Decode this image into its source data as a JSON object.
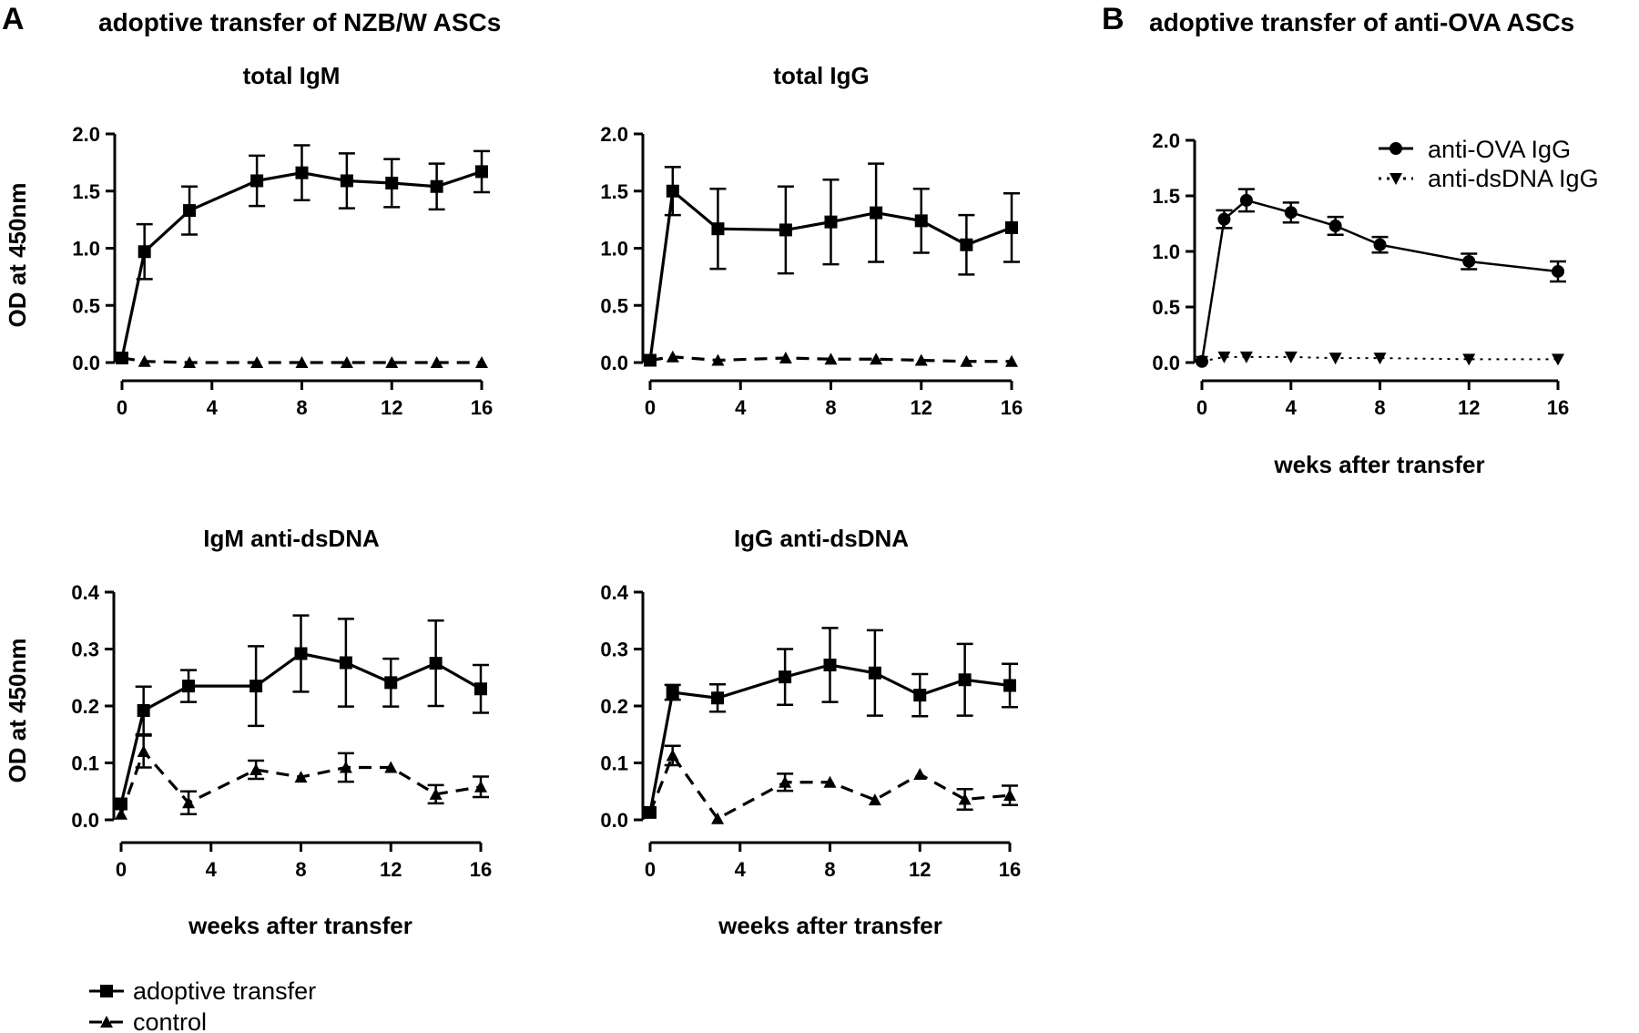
{
  "panels": {
    "A": {
      "letter": "A",
      "title": "adoptive transfer of NZB/W ASCs"
    },
    "B": {
      "letter": "B",
      "title": "adoptive transfer of anti-OVA ASCs"
    }
  },
  "legend_A": [
    {
      "label": "adoptive transfer",
      "line": "solid",
      "marker": "square"
    },
    {
      "label": "control",
      "line": "dashed",
      "marker": "triangle-up"
    }
  ],
  "legend_B": [
    {
      "label": "anti-OVA IgG",
      "line": "solid",
      "marker": "circle"
    },
    {
      "label": "anti-dsDNA IgG",
      "line": "dotted",
      "marker": "triangle-down"
    }
  ],
  "chart_data": [
    {
      "id": "totalIgM",
      "type": "line",
      "title": "total IgM",
      "xlabel": "",
      "ylabel": "OD at 450nm",
      "xlim": [
        0,
        16
      ],
      "xticks": [
        0,
        4,
        8,
        12,
        16
      ],
      "ylim": [
        0,
        2.0
      ],
      "yticks": [
        "0.0",
        "0.5",
        "1.0",
        "1.5",
        "2.0"
      ],
      "series": [
        {
          "line": "solid",
          "marker": "square",
          "x": [
            0,
            1,
            3,
            6,
            8,
            10,
            12,
            14,
            16
          ],
          "y": [
            0.04,
            0.97,
            1.33,
            1.59,
            1.66,
            1.59,
            1.57,
            1.54,
            1.67
          ],
          "err": [
            0,
            0.24,
            0.21,
            0.22,
            0.24,
            0.24,
            0.21,
            0.2,
            0.18
          ]
        },
        {
          "line": "dashed",
          "marker": "triangle-up",
          "x": [
            0,
            1,
            3,
            6,
            8,
            10,
            12,
            14,
            16
          ],
          "y": [
            0.04,
            0.01,
            0.0,
            0.0,
            0.0,
            0.0,
            0.0,
            0.0,
            0.0
          ],
          "err": [
            0,
            0,
            0,
            0,
            0,
            0,
            0,
            0,
            0
          ]
        }
      ]
    },
    {
      "id": "totalIgG",
      "type": "line",
      "title": "total IgG",
      "xlabel": "",
      "ylabel": "",
      "xlim": [
        0,
        16
      ],
      "xticks": [
        0,
        4,
        8,
        12,
        16
      ],
      "ylim": [
        0,
        2.0
      ],
      "yticks": [
        "0.0",
        "0.5",
        "1.0",
        "1.5",
        "2.0"
      ],
      "series": [
        {
          "line": "solid",
          "marker": "square",
          "x": [
            0,
            1,
            3,
            6,
            8,
            10,
            12,
            14,
            16
          ],
          "y": [
            0.02,
            1.5,
            1.17,
            1.16,
            1.23,
            1.31,
            1.24,
            1.03,
            1.18
          ],
          "err": [
            0,
            0.21,
            0.35,
            0.38,
            0.37,
            0.43,
            0.28,
            0.26,
            0.3
          ]
        },
        {
          "line": "dashed",
          "marker": "triangle-up",
          "x": [
            0,
            1,
            3,
            6,
            8,
            10,
            12,
            14,
            16
          ],
          "y": [
            0.02,
            0.05,
            0.02,
            0.04,
            0.03,
            0.03,
            0.02,
            0.01,
            0.01
          ],
          "err": [
            0,
            0,
            0,
            0,
            0,
            0,
            0,
            0,
            0
          ]
        }
      ]
    },
    {
      "id": "IgMdsDNA",
      "type": "line",
      "title": "IgM anti-dsDNA",
      "xlabel": "weeks after transfer",
      "ylabel": "OD at 450nm",
      "xlim": [
        0,
        16
      ],
      "xticks": [
        0,
        4,
        8,
        12,
        16
      ],
      "ylim": [
        0,
        0.4
      ],
      "yticks": [
        "0.0",
        "0.1",
        "0.2",
        "0.3",
        "0.4"
      ],
      "series": [
        {
          "line": "solid",
          "marker": "square",
          "x": [
            0,
            1,
            3,
            6,
            8,
            10,
            12,
            14,
            16
          ],
          "y": [
            0.028,
            0.192,
            0.235,
            0.235,
            0.292,
            0.276,
            0.241,
            0.275,
            0.23
          ],
          "err": [
            0,
            0.042,
            0.028,
            0.07,
            0.067,
            0.077,
            0.042,
            0.075,
            0.042
          ]
        },
        {
          "line": "dashed",
          "marker": "triangle-up",
          "x": [
            0,
            1,
            3,
            6,
            8,
            10,
            12,
            14,
            16
          ],
          "y": [
            0.01,
            0.12,
            0.03,
            0.088,
            0.075,
            0.092,
            0.092,
            0.045,
            0.058
          ],
          "err": [
            0,
            0.028,
            0.02,
            0.016,
            0,
            0.025,
            0,
            0.016,
            0.018
          ]
        }
      ]
    },
    {
      "id": "IgGdsDNA",
      "type": "line",
      "title": "IgG anti-dsDNA",
      "xlabel": "weeks after transfer",
      "ylabel": "",
      "xlim": [
        0,
        16
      ],
      "xticks": [
        0,
        4,
        8,
        12,
        16
      ],
      "ylim": [
        0,
        0.4
      ],
      "yticks": [
        "0.0",
        "0.1",
        "0.2",
        "0.3",
        "0.4"
      ],
      "series": [
        {
          "line": "solid",
          "marker": "square",
          "x": [
            0,
            1,
            3,
            6,
            8,
            10,
            12,
            14,
            16
          ],
          "y": [
            0.013,
            0.224,
            0.214,
            0.251,
            0.272,
            0.258,
            0.219,
            0.246,
            0.236
          ],
          "err": [
            0,
            0.013,
            0.024,
            0.049,
            0.065,
            0.075,
            0.037,
            0.063,
            0.038
          ]
        },
        {
          "line": "dashed",
          "marker": "triangle-up",
          "x": [
            0,
            1,
            3,
            6,
            8,
            10,
            12,
            14,
            16
          ],
          "y": [
            0.013,
            0.113,
            0.002,
            0.066,
            0.066,
            0.035,
            0.08,
            0.036,
            0.043
          ],
          "err": [
            0,
            0.017,
            0,
            0.015,
            0,
            0,
            0,
            0.018,
            0.017
          ]
        }
      ]
    },
    {
      "id": "antiOVA",
      "type": "line",
      "title": "",
      "xlabel": "weks after transfer",
      "ylabel": "",
      "xlim": [
        0,
        16
      ],
      "xticks": [
        0,
        4,
        8,
        12,
        16
      ],
      "ylim": [
        0,
        2.0
      ],
      "yticks": [
        "0.0",
        "0.5",
        "1.0",
        "1.5",
        "2.0"
      ],
      "series": [
        {
          "name": "anti-OVA IgG",
          "line": "solid",
          "marker": "circle",
          "x": [
            0,
            1,
            2,
            4,
            6,
            8,
            12,
            16
          ],
          "y": [
            0.01,
            1.29,
            1.46,
            1.35,
            1.23,
            1.06,
            0.91,
            0.82
          ],
          "err": [
            0,
            0.08,
            0.1,
            0.09,
            0.08,
            0.07,
            0.07,
            0.09
          ]
        },
        {
          "name": "anti-dsDNA IgG",
          "line": "dotted",
          "marker": "triangle-down",
          "x": [
            0,
            1,
            2,
            4,
            6,
            8,
            12,
            16
          ],
          "y": [
            0.01,
            0.05,
            0.05,
            0.05,
            0.04,
            0.04,
            0.03,
            0.03
          ],
          "err": [
            0,
            0,
            0,
            0,
            0,
            0,
            0,
            0
          ]
        }
      ]
    }
  ]
}
